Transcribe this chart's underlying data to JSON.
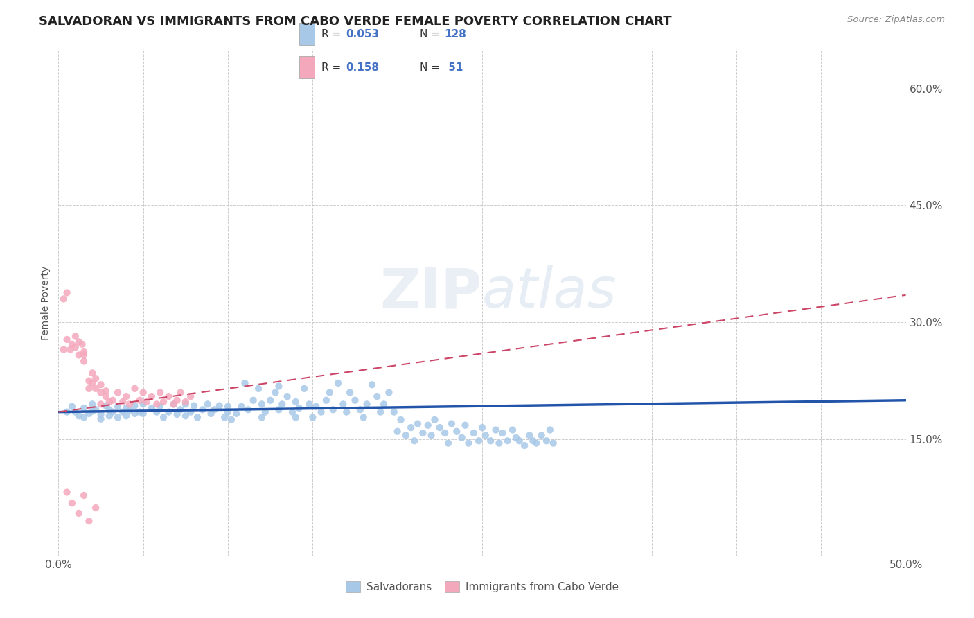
{
  "title": "SALVADORAN VS IMMIGRANTS FROM CABO VERDE FEMALE POVERTY CORRELATION CHART",
  "source": "Source: ZipAtlas.com",
  "ylabel": "Female Poverty",
  "xlim": [
    0.0,
    0.5
  ],
  "ylim": [
    0.0,
    0.65
  ],
  "R_salvadoran": 0.053,
  "N_salvadoran": 128,
  "R_caboverde": 0.158,
  "N_caboverde": 51,
  "blue_color": "#a8c8e8",
  "pink_color": "#f4a8bc",
  "blue_line_color": "#2255aa",
  "pink_line_color": "#cc4466",
  "legend_text_color": "#4472c4",
  "watermark": "ZIPatlas",
  "blue_line_x0": 0.0,
  "blue_line_y0": 0.185,
  "blue_line_x1": 0.5,
  "blue_line_y1": 0.2,
  "pink_line_x0": 0.0,
  "pink_line_y0": 0.185,
  "pink_line_x1": 0.5,
  "pink_line_y1": 0.335
}
